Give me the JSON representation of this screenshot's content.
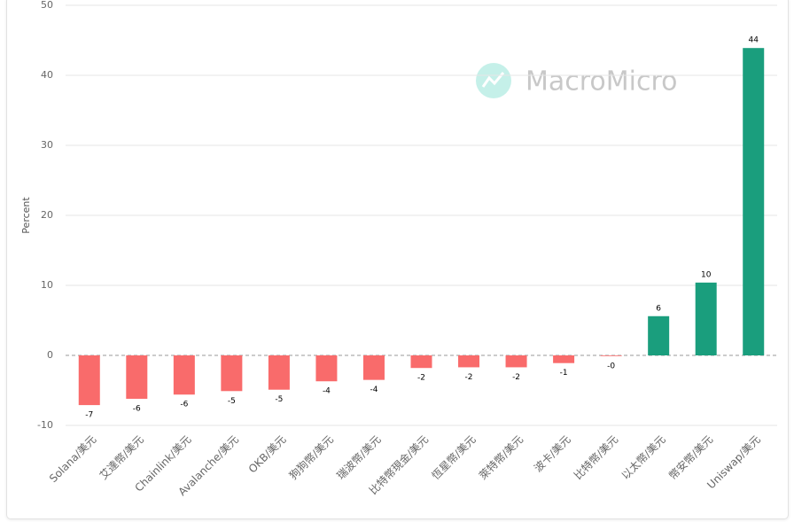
{
  "chart_data": {
    "type": "bar",
    "y_label": "Percent",
    "watermark": "MacroMicro",
    "categories": [
      "Solana/美元",
      "艾達幣/美元",
      "Chainlink/美元",
      "Avalanche/美元",
      "OKB/美元",
      "狗狗幣/美元",
      "瑞波幣/美元",
      "比特幣現金/美元",
      "恆星幣/美元",
      "萊特幣/美元",
      "波卡/美元",
      "比特幣/美元",
      "以太幣/美元",
      "幣安幣/美元",
      "Uniswap/美元"
    ],
    "values": [
      -7.1,
      -6.2,
      -5.6,
      -5.1,
      -4.9,
      -3.7,
      -3.5,
      -1.8,
      -1.7,
      -1.7,
      -1.1,
      -0.1,
      5.6,
      10.4,
      43.9
    ],
    "value_labels": [
      "-7",
      "-6",
      "-6",
      "-5",
      "-5",
      "-4",
      "-4",
      "-2",
      "-2",
      "-2",
      "-1",
      "-0",
      "6",
      "10",
      "44"
    ],
    "color_positive": "#1a9e7d",
    "color_negative": "#f96b6b",
    "ylim": [
      -10,
      50
    ],
    "yticks": [
      -10,
      0,
      10,
      20,
      30,
      40,
      50
    ],
    "grid": true
  }
}
